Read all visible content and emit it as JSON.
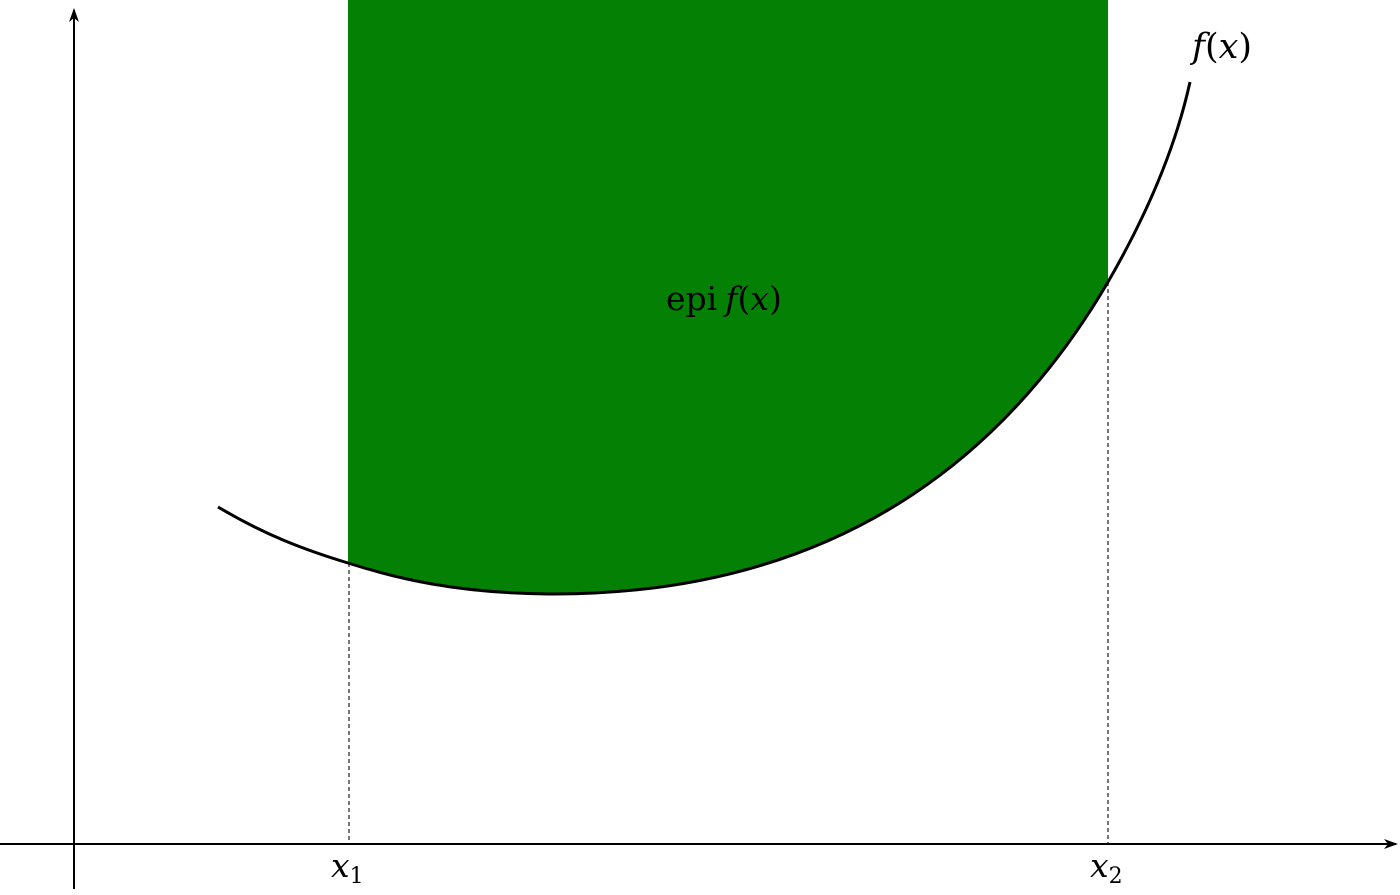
{
  "diagram": {
    "colors": {
      "epigraph_fill": "#048004",
      "curve": "#000000",
      "axes": "#000000",
      "guide_lines": "#555555",
      "background": "#ffffff"
    },
    "labels": {
      "curve": {
        "func": "f",
        "paren_open": "(",
        "var": "x",
        "paren_close": ")"
      },
      "region": {
        "prefix": "epi",
        "func": "f",
        "paren_open": "(",
        "var": "x",
        "paren_close": ")"
      },
      "x1": {
        "base": "x",
        "sub": "1"
      },
      "x2": {
        "base": "x",
        "sub": "2"
      }
    },
    "guide_style": "dashed",
    "axes": {
      "x_arrow": true,
      "y_arrow": true
    }
  }
}
